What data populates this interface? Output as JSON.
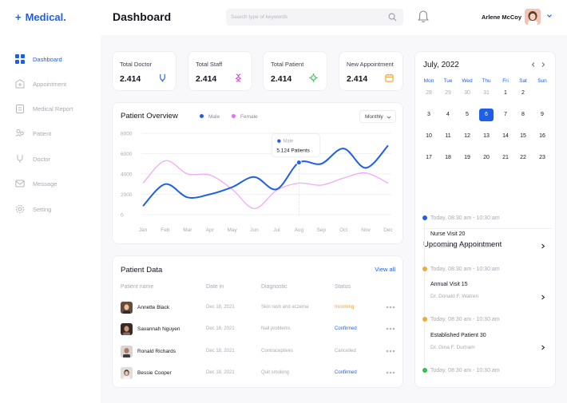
{
  "brand": {
    "plus": "+",
    "name": "Medical."
  },
  "header": {
    "title": "Dashboard",
    "search_placeholder": "Search type of keywords",
    "user_name": "Arlene McCoy"
  },
  "sidebar": {
    "items": [
      {
        "label": "Dashboard",
        "icon": "grid-icon",
        "active": true
      },
      {
        "label": "Appointment",
        "icon": "hospital-icon"
      },
      {
        "label": "Medical Report",
        "icon": "clipboard-icon"
      },
      {
        "label": "Patient",
        "icon": "people-icon"
      },
      {
        "label": "Doctor",
        "icon": "stethoscope-icon"
      },
      {
        "label": "Message",
        "icon": "envelope-icon"
      },
      {
        "label": "Setting",
        "icon": "gear-icon"
      }
    ]
  },
  "stats": [
    {
      "label": "Total Doctor",
      "value": "2.414",
      "icon": "doctor-icon",
      "color": "#1f5fe8"
    },
    {
      "label": "Total Staff",
      "value": "2.414",
      "icon": "dna-icon",
      "color": "#e43dd9"
    },
    {
      "label": "Total Patient",
      "value": "2.414",
      "icon": "virus-icon",
      "color": "#2fbf4f"
    },
    {
      "label": "New Appointment",
      "value": "2.414",
      "icon": "calendar-icon",
      "color": "#f59e2a"
    }
  ],
  "overview": {
    "title": "Patient Overview",
    "legend_male": "Male",
    "legend_female": "Female",
    "period": "Monthly",
    "tooltip_series": "Male",
    "tooltip_value": "5.124 Patients"
  },
  "colors": {
    "accent": "#1f5fe8",
    "male": "#1f5fe8",
    "female": "#f2a8f5",
    "incoming": "#f59e2a",
    "confirmed": "#1f5fe8",
    "cancelled": "#a9a9b4",
    "green": "#2fbf4f",
    "orange": "#f5a93a"
  },
  "chart_data": {
    "type": "line",
    "categories": [
      "Jan",
      "Feb",
      "Mar",
      "Apr",
      "May",
      "Jun",
      "Jul",
      "Aug",
      "Sep",
      "Oct",
      "Nov",
      "Dec"
    ],
    "y_ticks": [
      0,
      2000,
      4000,
      6000,
      8000
    ],
    "ylim": [
      0,
      8000
    ],
    "grid": true,
    "legend": "top",
    "series": [
      {
        "name": "Male",
        "values": [
          850,
          3000,
          1700,
          2000,
          2700,
          3700,
          2500,
          5124,
          5000,
          6500,
          4600,
          6800
        ]
      },
      {
        "name": "Female",
        "values": [
          3100,
          5300,
          4000,
          3900,
          2500,
          600,
          2400,
          3100,
          2900,
          3600,
          4100,
          3100
        ]
      }
    ],
    "highlight": {
      "series": "Male",
      "category": "Aug",
      "value": 5124
    }
  },
  "patients": {
    "title": "Patient Data",
    "view_all": "View all",
    "columns": [
      "Patient name",
      "Date in",
      "Diagnostic",
      "Status"
    ],
    "rows": [
      {
        "name": "Annette Black",
        "date": "Dec 18, 2021",
        "diagnostic": "Skin rash and eczema",
        "status": "Incoming",
        "status_color": "#f59e2a"
      },
      {
        "name": "Savannah Nguyen",
        "date": "Dec 18, 2021",
        "diagnostic": "Nail problems",
        "status": "Confirmed",
        "status_color": "#1f5fe8"
      },
      {
        "name": "Ronald Richards",
        "date": "Dec 18, 2021",
        "diagnostic": "Contraceptives",
        "status": "Cancelled",
        "status_color": "#a9a9b4"
      },
      {
        "name": "Bessie Cooper",
        "date": "Dec 18, 2021",
        "diagnostic": "Quit smoking",
        "status": "Confirmed",
        "status_color": "#1f5fe8"
      }
    ]
  },
  "calendar": {
    "title": "July, 2022",
    "day_names": [
      "Mon",
      "Tue",
      "Wed",
      "Thu",
      "Fri",
      "Sat",
      "Sun"
    ],
    "weeks": [
      [
        "28",
        "29",
        "30",
        "31",
        "1",
        "2"
      ],
      [
        "3",
        "4",
        "5",
        "6",
        "7",
        "8",
        "9"
      ],
      [
        "10",
        "11",
        "12",
        "13",
        "14",
        "15",
        "16"
      ],
      [
        "17",
        "18",
        "19",
        "20",
        "21",
        "22",
        "23"
      ]
    ],
    "muted_week1_count": 4,
    "selected_day": "6"
  },
  "upcoming": {
    "title": "Upcoming Appointment",
    "items": [
      {
        "time": "Today, 08:30 am - 10:30 am",
        "name": "Nurse Visit 20",
        "doctor": "Dr. Carol D. Pollack-rundle",
        "color": "#1f5fe8"
      },
      {
        "time": "Today, 08:30 am - 10:30 am",
        "name": "Annual Visit 15",
        "doctor": "Dr. Donald F. Watren",
        "color": "#f5a93a"
      },
      {
        "time": "Today, 08:30 am - 10:30 am",
        "name": "Established Patient 30",
        "doctor": "Dr. Gina F. Durham",
        "color": "#f5a93a"
      },
      {
        "time": "Today, 08:30 am - 10:30 am",
        "color": "#2fbf4f"
      }
    ]
  }
}
